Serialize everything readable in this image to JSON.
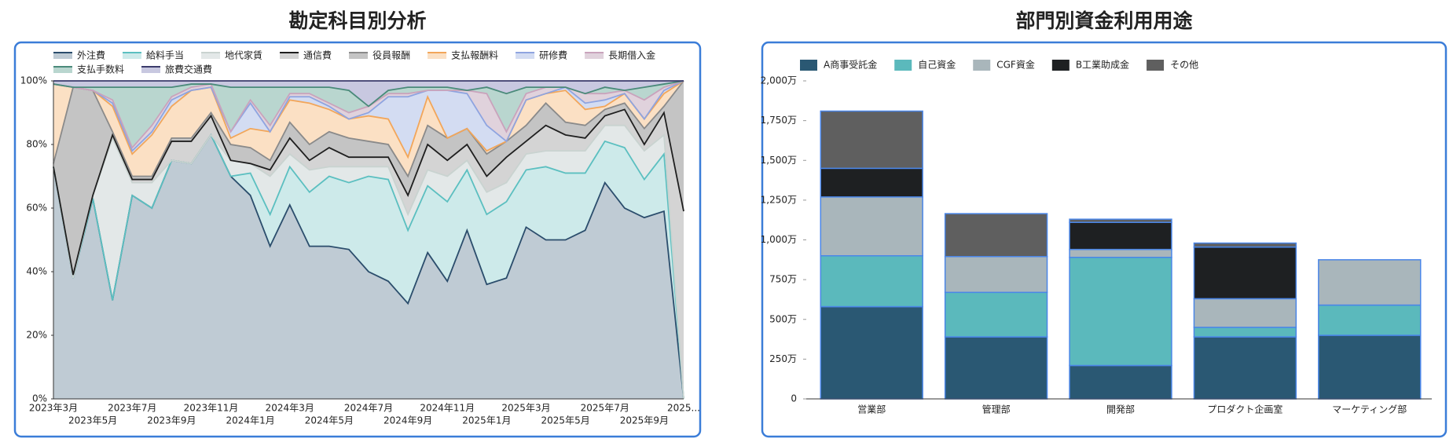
{
  "chart_data": [
    {
      "type": "stacked-area-percent",
      "title": "勘定科目別分析",
      "categories": [
        "2023年3月",
        null,
        "2023年5月",
        null,
        "2023年7月",
        null,
        "2023年9月",
        null,
        "2023年11月",
        null,
        "2024年1月",
        null,
        "2024年3月",
        null,
        "2024年5月",
        null,
        "2024年7月",
        null,
        "2024年9月",
        null,
        "2024年11月",
        null,
        "2025年1月",
        null,
        "2025年3月",
        null,
        "2025年5月",
        null,
        "2025年7月",
        null,
        "2025年9月",
        null,
        "2025..."
      ],
      "ylim": [
        0,
        100
      ],
      "yticks": [
        {
          "value": 0,
          "label": "0%"
        },
        {
          "value": 20,
          "label": "20%"
        },
        {
          "value": 40,
          "label": "40%"
        },
        {
          "value": 60,
          "label": "60%"
        },
        {
          "value": 80,
          "label": "80%"
        },
        {
          "value": 100,
          "label": "100%"
        }
      ],
      "series": [
        {
          "name": "外注費",
          "color": "#2b4d6c",
          "fill": "#bfcbd4",
          "values": [
            73,
            38,
            63,
            31,
            64,
            60,
            75,
            74,
            83,
            70,
            64,
            48,
            61,
            48,
            48,
            47,
            40,
            37,
            30,
            46,
            37,
            53,
            36,
            38,
            54,
            50,
            50,
            53,
            68,
            60,
            57,
            59,
            0
          ]
        },
        {
          "name": "給料手当",
          "color": "#5bbfc0",
          "fill": "#cdeaea",
          "values": [
            0,
            0,
            0,
            0,
            0,
            0,
            0,
            0,
            0,
            0,
            7,
            10,
            12,
            17,
            22,
            21,
            30,
            32,
            23,
            21,
            25,
            19,
            22,
            24,
            18,
            23,
            21,
            18,
            13,
            19,
            12,
            18,
            0
          ]
        },
        {
          "name": "地代家賃",
          "color": "#c9d3d0",
          "fill": "#e3e8e8",
          "values": [
            0,
            0,
            1,
            51,
            4,
            8,
            0,
            0,
            0,
            5,
            3,
            12,
            4,
            7,
            3,
            5,
            3,
            4,
            5,
            5,
            8,
            3,
            7,
            6,
            5,
            5,
            7,
            7,
            5,
            7,
            9,
            6,
            0
          ]
        },
        {
          "name": "通信費",
          "color": "#1f1f1f",
          "fill": "#d4d4d4",
          "values": [
            0,
            1,
            0,
            1,
            1,
            1,
            6,
            7,
            6,
            0,
            0,
            2,
            5,
            3,
            6,
            3,
            3,
            3,
            6,
            8,
            5,
            5,
            5,
            8,
            4,
            8,
            5,
            4,
            3,
            5,
            2,
            7,
            59
          ]
        },
        {
          "name": "役員報酬",
          "color": "#8a8a8a",
          "fill": "#c4c4c4",
          "values": [
            1,
            59,
            33,
            1,
            1,
            1,
            1,
            1,
            1,
            5,
            5,
            3,
            5,
            5,
            5,
            6,
            5,
            4,
            6,
            6,
            7,
            5,
            7,
            5,
            5,
            7,
            4,
            4,
            2,
            2,
            5,
            2,
            41
          ]
        },
        {
          "name": "支払報酬料",
          "color": "#f2a65a",
          "fill": "#fbe0c4",
          "values": [
            25,
            0,
            0,
            8,
            7,
            13,
            10,
            15,
            8,
            2,
            6,
            9,
            7,
            13,
            7,
            6,
            8,
            8,
            6,
            9,
            0,
            0,
            1,
            0,
            8,
            3,
            10,
            5,
            1,
            3,
            3,
            4,
            0
          ]
        },
        {
          "name": "研修費",
          "color": "#8ea4e0",
          "fill": "#d3dcf2",
          "values": [
            0,
            0,
            0,
            1,
            1,
            1,
            2,
            0,
            0,
            2,
            8,
            0,
            1,
            2,
            1,
            0,
            1,
            7,
            19,
            2,
            15,
            11,
            8,
            0,
            0,
            0,
            1,
            2,
            2,
            0,
            0,
            1,
            0
          ]
        },
        {
          "name": "長期借入金",
          "color": "#c9a3bc",
          "fill": "#e0d2dc",
          "values": [
            0,
            0,
            0,
            1,
            1,
            2,
            1,
            1,
            1,
            0,
            1,
            2,
            1,
            1,
            1,
            2,
            2,
            1,
            1,
            0,
            0,
            1,
            10,
            3,
            2,
            2,
            0,
            3,
            2,
            1,
            6,
            1,
            0
          ]
        },
        {
          "name": "支払手数料",
          "color": "#4a8a7a",
          "fill": "#b9d6cf",
          "values": [
            0,
            0,
            1,
            4,
            19,
            12,
            3,
            1,
            0,
            14,
            4,
            12,
            2,
            2,
            5,
            7,
            0,
            1,
            2,
            1,
            1,
            0,
            2,
            12,
            2,
            0,
            0,
            0,
            2,
            0,
            4,
            1,
            0
          ]
        },
        {
          "name": "旅費交通費",
          "color": "#3b3b6b",
          "fill": "#c8c8e0",
          "values": [
            1,
            2,
            2,
            2,
            2,
            2,
            2,
            1,
            1,
            2,
            2,
            2,
            2,
            2,
            2,
            3,
            8,
            3,
            2,
            2,
            2,
            3,
            2,
            4,
            2,
            2,
            2,
            4,
            2,
            3,
            2,
            1,
            0
          ]
        }
      ]
    },
    {
      "type": "stacked-bar",
      "title": "部門別資金利用用途",
      "categories": [
        "営業部",
        "管理部",
        "開発部",
        "プロダクト企画室",
        "マーケティング部"
      ],
      "ylim": [
        0,
        2000
      ],
      "yticks": [
        0,
        {
          "value": 250,
          "label": "250万"
        },
        {
          "value": 500,
          "label": "500万"
        },
        {
          "value": 750,
          "label": "750万"
        },
        {
          "value": 1000,
          "label": "1,000万"
        },
        {
          "value": 1250,
          "label": "1,250万"
        },
        {
          "value": 1500,
          "label": "1,500万"
        },
        {
          "value": 1750,
          "label": "1,750万"
        },
        {
          "value": 2000,
          "label": "2,000万"
        }
      ],
      "series": [
        {
          "name": "A商事受託金",
          "color": "#2a5873",
          "values": [
            580,
            390,
            210,
            390,
            400
          ]
        },
        {
          "name": "自己資金",
          "color": "#5bb9bc",
          "values": [
            320,
            280,
            680,
            60,
            190
          ]
        },
        {
          "name": "CGF資金",
          "color": "#a9b6bb",
          "values": [
            370,
            225,
            50,
            180,
            285
          ]
        },
        {
          "name": "B工業助成金",
          "color": "#1e2022",
          "values": [
            180,
            0,
            170,
            325,
            0
          ]
        },
        {
          "name": "その他",
          "color": "#5f5f5f",
          "values": [
            360,
            270,
            20,
            25,
            0
          ]
        }
      ]
    }
  ]
}
